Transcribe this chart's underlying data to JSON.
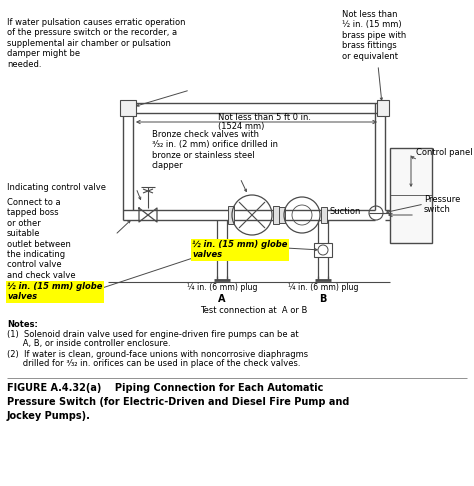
{
  "title_line1": "FIGURE A.4.32(a)    Piping Connection for Each Automatic",
  "title_line2": "Pressure Switch (for Electric-Driven and Diesel Fire Pump and",
  "title_line3": "Jockey Pumps).",
  "top_left_text": "If water pulsation causes erratic operation\nof the pressure switch or the recorder, a\nsupplemental air chamber or pulsation\ndamper might be\nneeded.",
  "top_right_text": "Not less than\n½ in. (15 mm)\nbrass pipe with\nbrass fittings\nor equivalent",
  "center_top_text1": "Not less than 5 ft 0 in.",
  "center_top_text2": "(1524 mm)",
  "bronze_text": "Bronze check valves with\n³⁄₃₂ in. (2 mm) orifice drilled in\nbronze or stainless steel\nclapper",
  "control_panel_text": "Control panel",
  "suction_text": "Suction",
  "pressure_switch_text": "Pressure\nswitch",
  "indicating_valve_text": "Indicating control valve",
  "connect_text": "Connect to a\ntapped boss\nor other\nsuitable\noutlet between\nthe indicating\ncontrol valve\nand check valve",
  "globe_valves_center": "½ in. (15 mm) globe\nvalves",
  "globe_valves_left": "½ in. (15 mm) globe\nvalves",
  "plug_left": "¼ in. (6 mm) plug",
  "plug_right": "¼ in. (6 mm) plug",
  "label_A": "A",
  "label_B": "B",
  "test_connection": "Test connection at  A or B",
  "notes_title": "Notes:",
  "note1a": "(1)  Solenoid drain valve used for engine-driven fire pumps can be at",
  "note1b": "      A, B, or inside controller enclosure.",
  "note2a": "(2)  If water is clean, ground-face unions with noncorrosive diaphragms",
  "note2b": "      drilled for ³⁄₃₂ in. orifices can be used in place of the check valves.",
  "highlight_color": "#FFFF00",
  "bg_color": "#FFFFFF",
  "text_color": "#000000",
  "line_color": "#4a4a4a"
}
